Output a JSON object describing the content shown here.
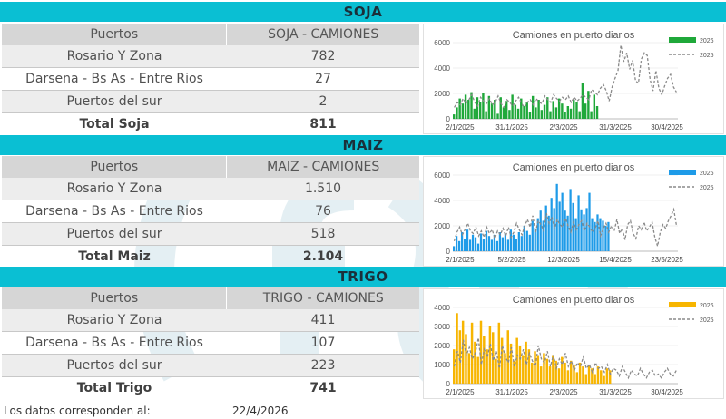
{
  "sections": [
    {
      "title": "SOJA",
      "col1_header": "Puertos",
      "col2_header": "SOJA - CAMIONES",
      "rows": [
        {
          "label": "Rosario Y Zona",
          "value": "782"
        },
        {
          "label": "Darsena - Bs As - Entre Rios",
          "value": "27"
        },
        {
          "label": "Puertos del sur",
          "value": "2"
        },
        {
          "label": "Total Soja",
          "value": "811"
        }
      ]
    },
    {
      "title": "MAIZ",
      "col1_header": "Puertos",
      "col2_header": "MAIZ - CAMIONES",
      "rows": [
        {
          "label": "Rosario Y Zona",
          "value": "1.510"
        },
        {
          "label": "Darsena - Bs As - Entre Rios",
          "value": "76"
        },
        {
          "label": "Puertos del sur",
          "value": "518"
        },
        {
          "label": "Total Maiz",
          "value": "2.104"
        }
      ]
    },
    {
      "title": "TRIGO",
      "col1_header": "Puertos",
      "col2_header": "TRIGO - CAMIONES",
      "rows": [
        {
          "label": "Rosario Y Zona",
          "value": "411"
        },
        {
          "label": "Darsena - Bs As - Entre Rios",
          "value": "107"
        },
        {
          "label": "Puertos del sur",
          "value": "223"
        },
        {
          "label": "Total Trigo",
          "value": "741"
        }
      ]
    }
  ],
  "footer": {
    "label": "Los datos corresponden al:",
    "date": "22/4/2026"
  },
  "chart_data": [
    {
      "type": "bar",
      "title": "Camiones en puerto diarios",
      "x_tick_labels": [
        "2/1/2025",
        "31/1/2025",
        "2/3/2025",
        "31/3/2025",
        "30/4/2025"
      ],
      "y_ticks": [
        0,
        2000,
        4000,
        6000
      ],
      "ylim": [
        0,
        6000
      ],
      "bar_color": "#1fa83a",
      "line_color": "#8a8a8a",
      "series": [
        {
          "name": "2026",
          "kind": "bar",
          "values": [
            350,
            900,
            1600,
            1200,
            1900,
            1500,
            2100,
            800,
            1700,
            1300,
            2000,
            600,
            1800,
            1200,
            1500,
            400,
            1700,
            900,
            1400,
            700,
            1900,
            1100,
            800,
            1600,
            1000,
            1300,
            500,
            1800,
            900,
            1500,
            700,
            1100,
            1700,
            600,
            1400,
            900,
            1600,
            1200,
            500,
            1000,
            800,
            1500,
            1300,
            600,
            2800,
            1200,
            2200,
            600,
            1900,
            1000
          ]
        },
        {
          "name": "2025",
          "kind": "line",
          "values": [
            900,
            1300,
            1100,
            1600,
            1200,
            1500,
            1900,
            1300,
            1000,
            1700,
            1400,
            1200,
            1600,
            1100,
            1300,
            1800,
            1200,
            900,
            1500,
            1300,
            1000,
            1400,
            1700,
            1200,
            900,
            1300,
            1500,
            1100,
            1600,
            1300,
            1200,
            1800,
            1500,
            1300,
            1900,
            1600,
            1400,
            1700,
            1500,
            1800,
            1300,
            1700,
            1400,
            1600,
            1900,
            1700,
            1500,
            2300,
            2100,
            1900,
            2400,
            2700,
            2200,
            1400,
            2500,
            3200,
            3800,
            5800,
            4500,
            5200,
            3900,
            4600,
            3000,
            2800,
            4700,
            5200,
            5000,
            3100,
            2200,
            3800,
            2400,
            1900,
            2600,
            3200,
            3500,
            2500,
            2100
          ]
        }
      ]
    },
    {
      "type": "bar",
      "title": "Camiones en puerto diarios",
      "x_tick_labels": [
        "2/1/2025",
        "5/2/2025",
        "12/3/2025",
        "15/4/2025",
        "23/5/2025"
      ],
      "y_ticks": [
        0,
        2000,
        4000,
        6000
      ],
      "ylim": [
        0,
        6000
      ],
      "bar_color": "#1e9be8",
      "line_color": "#8a8a8a",
      "series": [
        {
          "name": "2026",
          "kind": "bar",
          "values": [
            400,
            1200,
            800,
            1500,
            1000,
            1700,
            900,
            1300,
            1100,
            600,
            1400,
            1000,
            1600,
            1200,
            900,
            1300,
            800,
            1500,
            1100,
            1400,
            900,
            1700,
            1300,
            1000,
            1500,
            1200,
            2000,
            1600,
            1300,
            2400,
            1800,
            2600,
            3200,
            2400,
            3600,
            2800,
            4200,
            3400,
            5300,
            3900,
            4600,
            3200,
            2800,
            4900,
            3800,
            2600,
            4400,
            3300,
            2900,
            3400,
            4600,
            2600,
            2300,
            2900,
            2600,
            2400,
            2000,
            2300
          ]
        },
        {
          "name": "2025",
          "kind": "line",
          "values": [
            800,
            1500,
            1900,
            1300,
            1700,
            2200,
            1600,
            1400,
            1900,
            1200,
            1600,
            1100,
            1900,
            1400,
            1700,
            1000,
            1600,
            1300,
            1800,
            1200,
            1900,
            1100,
            1500,
            2200,
            1700,
            1300,
            2000,
            2500,
            1900,
            2800,
            1500,
            2400,
            2100,
            1600,
            3000,
            2200,
            2700,
            1800,
            2500,
            2100,
            1900,
            2600,
            2000,
            1500,
            2300,
            1700,
            2100,
            2400,
            1600,
            2200,
            1900,
            1500,
            1800,
            2400,
            1200,
            1800,
            2200,
            1500,
            2000,
            1600,
            2500,
            1400,
            1800,
            900,
            2100,
            2400,
            1400,
            1000,
            2000,
            1700,
            2300,
            1600,
            1900,
            2300,
            1100,
            400,
            1500,
            2100,
            1800,
            2400,
            2800,
            3300,
            2000
          ]
        }
      ]
    },
    {
      "type": "bar",
      "title": "Camiones en puerto diarios",
      "x_tick_labels": [
        "2/1/2025",
        "31/1/2025",
        "2/3/2025",
        "31/3/2025",
        "30/4/2025"
      ],
      "y_ticks": [
        0,
        1000,
        2000,
        3000,
        4000
      ],
      "ylim": [
        0,
        4000
      ],
      "bar_color": "#f7b500",
      "line_color": "#8a8a8a",
      "series": [
        {
          "name": "2026",
          "kind": "bar",
          "values": [
            1800,
            3700,
            2800,
            3300,
            2600,
            1600,
            3200,
            2200,
            1400,
            3300,
            2500,
            1800,
            3000,
            2700,
            1300,
            3200,
            2400,
            1600,
            2800,
            2100,
            1200,
            2400,
            2000,
            1500,
            2200,
            1800,
            1100,
            1700,
            1500,
            900,
            1600,
            1300,
            900,
            1500,
            1200,
            800,
            1400,
            1100,
            700,
            1200,
            1000,
            600,
            1100,
            900,
            500,
            1000,
            800,
            500,
            900,
            700,
            400,
            800,
            700
          ]
        },
        {
          "name": "2025",
          "kind": "line",
          "values": [
            900,
            1700,
            1100,
            2300,
            1500,
            1900,
            1300,
            1600,
            2400,
            1000,
            1800,
            1400,
            2100,
            1200,
            1700,
            800,
            2000,
            1400,
            1100,
            1900,
            900,
            1500,
            1300,
            1800,
            1000,
            1600,
            1200,
            900,
            2000,
            1300,
            1100,
            1700,
            900,
            1500,
            800,
            1300,
            1000,
            1600,
            900,
            1200,
            700,
            1100,
            900,
            1400,
            800,
            1000,
            600,
            1100,
            800,
            900,
            600,
            1000,
            500,
            800,
            700,
            400,
            900,
            600,
            300,
            700,
            500,
            400,
            800,
            500,
            300,
            600,
            700,
            400,
            500,
            300,
            600,
            800,
            500,
            400,
            700
          ]
        }
      ]
    }
  ]
}
